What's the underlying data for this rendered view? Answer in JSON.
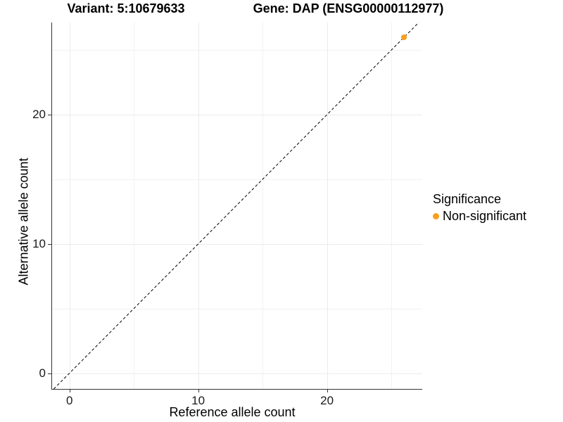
{
  "chart_data": {
    "type": "scatter",
    "titles": {
      "variant": "Variant: 5:10679633",
      "gene": "Gene: DAP (ENSG00000112977)"
    },
    "xlabel": "Reference allele count",
    "ylabel": "Alternative allele count",
    "xlim": [
      -1.35,
      27.4
    ],
    "ylim": [
      -1.22,
      27.13
    ],
    "x_major_ticks": [
      0,
      10,
      20
    ],
    "y_major_ticks": [
      0,
      10,
      20
    ],
    "x_minor_gridlines": [
      5,
      15,
      25
    ],
    "y_minor_gridlines": [
      5,
      15,
      25
    ],
    "grid": true,
    "reference_line": {
      "kind": "identity",
      "slope": 1,
      "intercept": 0,
      "style": "dashed",
      "color": "#000000"
    },
    "series": [
      {
        "name": "Non-significant",
        "color": "#f9a01c",
        "points": [
          {
            "x": 26,
            "y": 26
          }
        ]
      }
    ],
    "legend": {
      "title": "Significance",
      "position": "right",
      "items": [
        {
          "label": "Non-significant",
          "color": "#f9a01c"
        }
      ]
    }
  },
  "colors": {
    "axis_line": "#333333",
    "gridline_major": "#ebebeb",
    "gridline_minor": "#f2f2f2",
    "background": "#ffffff"
  }
}
